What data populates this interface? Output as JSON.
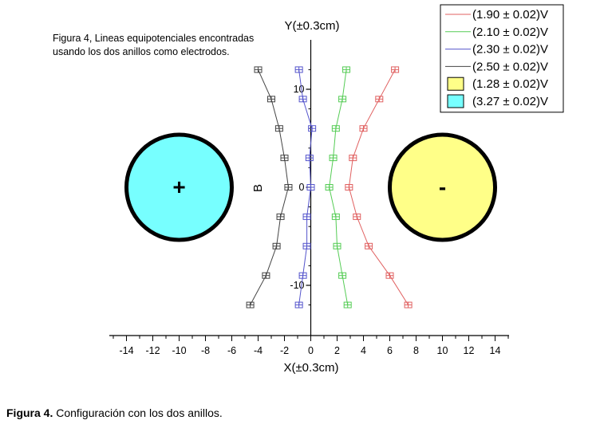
{
  "chart_data": {
    "type": "scatter",
    "title_lines": [
      "Figura 4, Lineas equipotenciales encontradas",
      "usando los dos anillos como electrodos."
    ],
    "xlabel": "X(±0.3cm)",
    "ylabel": "Y(±0.3cm)",
    "y_axis_inline_label": "B",
    "xlim": [
      -15,
      15
    ],
    "ylim": [
      -13.5,
      13.5
    ],
    "x_ticks": [
      -14,
      -12,
      -10,
      -8,
      -6,
      -4,
      -2,
      0,
      2,
      4,
      6,
      8,
      10,
      12,
      14
    ],
    "y_ticks": [
      10,
      0,
      -10
    ],
    "y_tick_labels": [
      "10",
      "0",
      "-10"
    ],
    "series": [
      {
        "name": "(1.90 ± 0.02)V",
        "color": "#e06060",
        "points": [
          [
            6.4,
            12
          ],
          [
            5.2,
            9
          ],
          [
            4,
            6
          ],
          [
            3.2,
            3
          ],
          [
            2.9,
            0
          ],
          [
            3.5,
            -3
          ],
          [
            4.4,
            -6
          ],
          [
            6,
            -9
          ],
          [
            7.4,
            -12
          ]
        ]
      },
      {
        "name": "(2.10 ± 0.02)V",
        "color": "#55cc55",
        "points": [
          [
            2.7,
            12
          ],
          [
            2.4,
            9
          ],
          [
            1.9,
            6
          ],
          [
            1.7,
            3
          ],
          [
            1.4,
            0
          ],
          [
            1.9,
            -3
          ],
          [
            2,
            -6
          ],
          [
            2.4,
            -9
          ],
          [
            2.8,
            -12
          ]
        ]
      },
      {
        "name": "(2.30 ± 0.02)V",
        "color": "#5555cc",
        "points": [
          [
            -0.9,
            12
          ],
          [
            -0.6,
            9
          ],
          [
            0.1,
            6
          ],
          [
            -0.1,
            3
          ],
          [
            0,
            0
          ],
          [
            -0.3,
            -3
          ],
          [
            -0.3,
            -6
          ],
          [
            -0.6,
            -9
          ],
          [
            -0.9,
            -12
          ]
        ]
      },
      {
        "name": "(2.50 ± 0.02)V",
        "color": "#444444",
        "points": [
          [
            -4,
            12
          ],
          [
            -3,
            9
          ],
          [
            -2.4,
            6
          ],
          [
            -2,
            3
          ],
          [
            -1.7,
            0
          ],
          [
            -2.3,
            -3
          ],
          [
            -2.6,
            -6
          ],
          [
            -3.4,
            -9
          ],
          [
            -4.6,
            -12
          ]
        ]
      }
    ],
    "regions": [
      {
        "name": "(3.27 ± 0.02)V",
        "color": "#77ffff",
        "center": [
          -10,
          0
        ],
        "radius": 7.8,
        "sign": "+"
      },
      {
        "name": "(1.28 ± 0.02)V",
        "color": "#ffff88",
        "center": [
          10,
          0
        ],
        "radius": 7.8,
        "sign": "-"
      }
    ],
    "legend_order": [
      {
        "text": "(1.90 ± 0.02)V",
        "kind": "line",
        "color": "#e06060"
      },
      {
        "text": "(2.10 ± 0.02)V",
        "kind": "line",
        "color": "#55cc55"
      },
      {
        "text": "(2.30 ± 0.02)V",
        "kind": "line",
        "color": "#5555cc"
      },
      {
        "text": "(2.50 ± 0.02)V",
        "kind": "line",
        "color": "#444444"
      },
      {
        "text": "(1.28 ± 0.02)V",
        "kind": "box",
        "color": "#ffff88"
      },
      {
        "text": "(3.27 ± 0.02)V",
        "kind": "box",
        "color": "#77ffff"
      }
    ],
    "legend_placement": "top-right",
    "grid": false
  },
  "caption": {
    "label": "Figura 4.",
    "text": "Configuración con los dos anillos."
  }
}
